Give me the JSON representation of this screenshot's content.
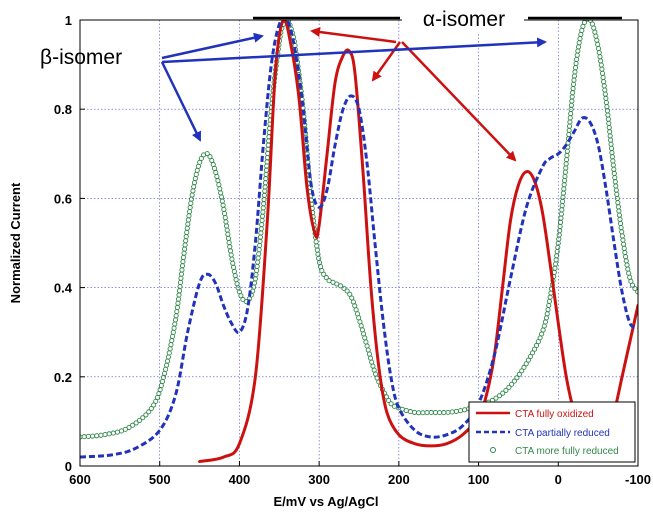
{
  "chart_data": {
    "type": "line",
    "title": "",
    "xlabel": "E/mV vs Ag/AgCl",
    "ylabel": "Normalized Current",
    "xlim": [
      600,
      -100
    ],
    "ylim": [
      0,
      1
    ],
    "x_reversed": true,
    "x_ticks": [
      "600",
      "500",
      "400",
      "300",
      "200",
      "100",
      "0",
      "-100"
    ],
    "x_tick_values": [
      600,
      500,
      400,
      300,
      200,
      100,
      0,
      -100
    ],
    "y_ticks": [
      "0",
      "0.2",
      "0.4",
      "0.6",
      "0.8",
      "1"
    ],
    "y_tick_values": [
      0,
      0.2,
      0.4,
      0.6,
      0.8,
      1
    ],
    "grid": true,
    "legend_position": "bottom-right",
    "series": [
      {
        "name": "CTA fully oxidized",
        "color": "#cc1111",
        "style": "solid",
        "x": [
          450,
          420,
          400,
          380,
          365,
          355,
          345,
          335,
          325,
          315,
          305,
          300,
          290,
          280,
          270,
          262,
          255,
          245,
          235,
          225,
          215,
          200,
          180,
          160,
          140,
          120,
          100,
          90,
          80,
          70,
          60,
          50,
          40,
          30,
          20,
          10,
          0,
          -10,
          -20,
          -30,
          -40,
          -50,
          -60,
          -70,
          -80,
          -90,
          -100
        ],
        "y": [
          0.01,
          0.02,
          0.05,
          0.2,
          0.55,
          0.88,
          1.0,
          0.94,
          0.82,
          0.62,
          0.52,
          0.54,
          0.7,
          0.86,
          0.92,
          0.93,
          0.88,
          0.66,
          0.4,
          0.22,
          0.12,
          0.07,
          0.05,
          0.045,
          0.05,
          0.07,
          0.11,
          0.16,
          0.25,
          0.4,
          0.55,
          0.63,
          0.66,
          0.64,
          0.57,
          0.45,
          0.32,
          0.2,
          0.12,
          0.07,
          0.05,
          0.05,
          0.07,
          0.12,
          0.2,
          0.28,
          0.36
        ]
      },
      {
        "name": "CTA partially reduced",
        "color": "#2233bb",
        "style": "dashed",
        "x": [
          600,
          560,
          530,
          500,
          480,
          465,
          450,
          440,
          430,
          420,
          410,
          400,
          390,
          380,
          370,
          360,
          350,
          340,
          330,
          320,
          310,
          300,
          290,
          280,
          270,
          260,
          250,
          240,
          230,
          220,
          210,
          200,
          180,
          160,
          140,
          120,
          100,
          80,
          60,
          40,
          20,
          10,
          0,
          -10,
          -20,
          -30,
          -40,
          -50,
          -60,
          -70,
          -80,
          -90,
          -100
        ],
        "y": [
          0.02,
          0.025,
          0.04,
          0.08,
          0.16,
          0.3,
          0.41,
          0.43,
          0.41,
          0.36,
          0.32,
          0.3,
          0.35,
          0.5,
          0.72,
          0.9,
          0.99,
          1.0,
          0.93,
          0.8,
          0.63,
          0.58,
          0.62,
          0.72,
          0.8,
          0.83,
          0.8,
          0.68,
          0.5,
          0.33,
          0.2,
          0.13,
          0.08,
          0.065,
          0.07,
          0.09,
          0.14,
          0.25,
          0.42,
          0.58,
          0.67,
          0.69,
          0.7,
          0.72,
          0.75,
          0.78,
          0.77,
          0.72,
          0.62,
          0.5,
          0.39,
          0.32,
          0.31
        ]
      },
      {
        "name": "CTA more fully reduced",
        "color": "#33884a",
        "style": "markers",
        "x": [
          600,
          570,
          540,
          510,
          495,
          480,
          470,
          460,
          450,
          440,
          430,
          420,
          410,
          400,
          390,
          380,
          370,
          360,
          350,
          345,
          340,
          335,
          330,
          320,
          310,
          300,
          290,
          280,
          270,
          260,
          250,
          240,
          230,
          220,
          210,
          200,
          180,
          160,
          140,
          120,
          100,
          80,
          60,
          40,
          20,
          10,
          0,
          -10,
          -20,
          -30,
          -40,
          -50,
          -60,
          -70,
          -80,
          -90,
          -100
        ],
        "y": [
          0.065,
          0.07,
          0.085,
          0.13,
          0.2,
          0.33,
          0.47,
          0.6,
          0.68,
          0.7,
          0.66,
          0.58,
          0.47,
          0.39,
          0.37,
          0.42,
          0.58,
          0.8,
          0.95,
          0.99,
          1.0,
          0.98,
          0.94,
          0.8,
          0.6,
          0.46,
          0.42,
          0.41,
          0.4,
          0.38,
          0.33,
          0.27,
          0.21,
          0.17,
          0.14,
          0.13,
          0.12,
          0.12,
          0.12,
          0.125,
          0.135,
          0.15,
          0.18,
          0.23,
          0.3,
          0.38,
          0.5,
          0.68,
          0.87,
          0.98,
          1.0,
          0.94,
          0.82,
          0.66,
          0.52,
          0.42,
          0.39
        ]
      }
    ],
    "annotations": [
      {
        "text": "α-isomer",
        "color": "#cc1111"
      },
      {
        "text": "β-isomer",
        "color": "#2233bb"
      }
    ]
  }
}
